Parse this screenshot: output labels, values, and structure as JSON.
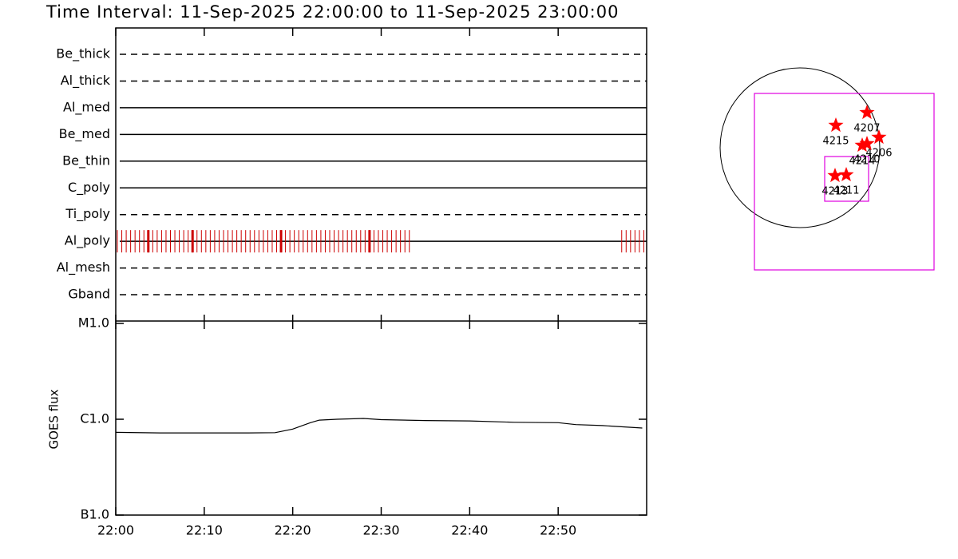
{
  "title": "Time Interval: 11-Sep-2025 22:00:00 to 11-Sep-2025 23:00:00",
  "chart_data": [
    {
      "type": "events",
      "categories": [
        "Be_thick",
        "Al_thick",
        "Al_med",
        "Be_med",
        "Be_thin",
        "C_poly",
        "Ti_poly",
        "Al_poly",
        "Al_mesh",
        "Gband"
      ],
      "styles": [
        "dashed",
        "dashed",
        "solid",
        "solid",
        "solid",
        "solid",
        "dashed",
        "solid",
        "dashed",
        "dashed"
      ],
      "xlim": [
        0,
        60
      ],
      "event_category": "Al_poly",
      "x": [
        0,
        0.5,
        1,
        1.5,
        2,
        2.5,
        3,
        3.5,
        4,
        4.5,
        5,
        5.5,
        6,
        6.5,
        7,
        7.5,
        8,
        8.5,
        9,
        9.5,
        10,
        10.5,
        11,
        11.5,
        12,
        12.5,
        13,
        13.5,
        14,
        14.5,
        15,
        15.5,
        16,
        16.5,
        17,
        17.5,
        18,
        18.5,
        19,
        19.5,
        20,
        20.5,
        21,
        21.5,
        22,
        22.5,
        23,
        23.5,
        24,
        24.5,
        25,
        25.5,
        26,
        26.5,
        27,
        27.5,
        28,
        28.5,
        29,
        29.5,
        30,
        30.5,
        31,
        31.5,
        32,
        32.5,
        33,
        57,
        57.5,
        58,
        58.5,
        59,
        59.5
      ],
      "long_x": [
        3.5,
        8.5,
        18.5,
        28.5
      ],
      "color": "#cc0000"
    },
    {
      "type": "line",
      "ylabel": "GOES flux",
      "log": true,
      "xlim": [
        0,
        60
      ],
      "xticks": [
        {
          "value": 0,
          "label": "22:00"
        },
        {
          "value": 10,
          "label": "22:10"
        },
        {
          "value": 20,
          "label": "22:20"
        },
        {
          "value": 30,
          "label": "22:30"
        },
        {
          "value": 40,
          "label": "22:40"
        },
        {
          "value": 50,
          "label": "22:50"
        }
      ],
      "ylim": [
        1e-07,
        1e-05
      ],
      "yticks": [
        {
          "value": 1e-07,
          "label": "B1.0"
        },
        {
          "value": 1e-06,
          "label": "C1.0"
        },
        {
          "value": 1e-05,
          "label": "M1.0"
        }
      ],
      "x": [
        0,
        5,
        10,
        15,
        18,
        20,
        22,
        23,
        25,
        28,
        30,
        35,
        40,
        45,
        50,
        52,
        55,
        59.5
      ],
      "values": [
        7.3e-07,
        7.2e-07,
        7.2e-07,
        7.2e-07,
        7.25e-07,
        7.9e-07,
        9.2e-07,
        9.8e-07,
        1e-06,
        1.02e-06,
        9.9e-07,
        9.7e-07,
        9.6e-07,
        9.3e-07,
        9.2e-07,
        8.8e-07,
        8.6e-07,
        8.1e-07
      ],
      "color": "#000000"
    },
    {
      "type": "map",
      "points": [
        {
          "name": "4207",
          "x": 806,
          "y": 422
        },
        {
          "name": "4215",
          "x": 432,
          "y": 269
        },
        {
          "name": "4206",
          "x": 950,
          "y": 125
        },
        {
          "name": "4214",
          "x": 749,
          "y": 29
        },
        {
          "name": "4210",
          "x": 806,
          "y": 48
        },
        {
          "name": "4213",
          "x": 422,
          "y": -336
        },
        {
          "name": "4211",
          "x": 557,
          "y": -326
        }
      ],
      "color": "#ff0000"
    }
  ]
}
